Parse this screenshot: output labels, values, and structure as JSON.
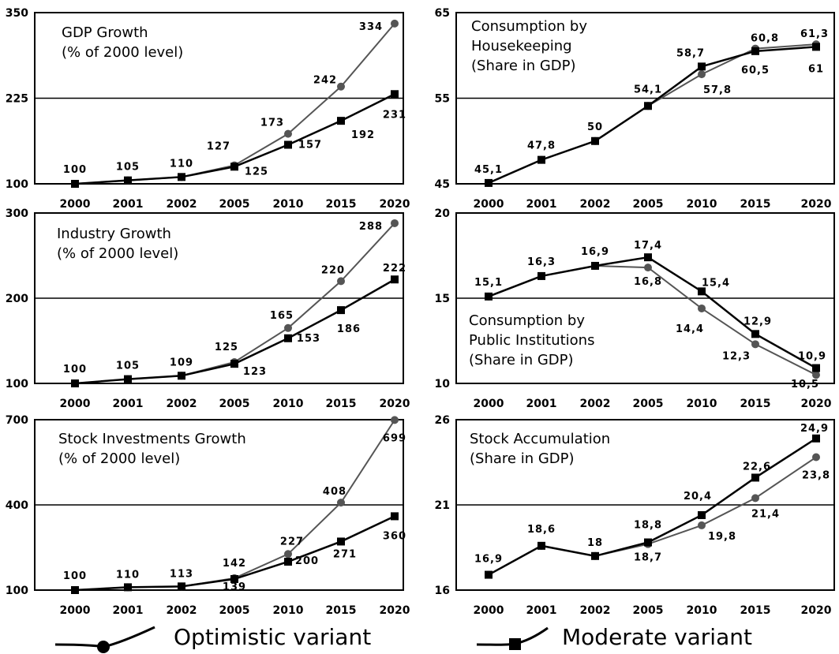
{
  "legend": {
    "optimistic": "Optimistic variant",
    "moderate": "Moderate variant"
  },
  "colors": {
    "optimistic": "#555555",
    "moderate": "#000000",
    "frame": "#000000"
  },
  "chart_data": [
    {
      "type": "line",
      "title": [
        "GDP Growth",
        "(% of 2000 level)"
      ],
      "categories": [
        "2000",
        "2001",
        "2002",
        "2005",
        "2010",
        "2015",
        "2020"
      ],
      "ylim": [
        100,
        350
      ],
      "yticks": [
        "100",
        "225",
        "350"
      ],
      "series": [
        {
          "name": "Optimistic variant",
          "values": [
            100,
            105,
            110,
            127,
            173,
            242,
            334
          ],
          "labels": [
            "",
            "",
            "",
            "127",
            "173",
            "242",
            "334"
          ]
        },
        {
          "name": "Moderate variant",
          "values": [
            100,
            105,
            110,
            125,
            157,
            192,
            231
          ],
          "labels": [
            "100",
            "105",
            "110",
            "125",
            "157",
            "192",
            "231"
          ]
        }
      ]
    },
    {
      "type": "line",
      "title": [
        "Consumption by",
        "Housekeeping",
        "(Share in GDP)"
      ],
      "categories": [
        "2000",
        "2001",
        "2002",
        "2005",
        "2010",
        "2015",
        "2020"
      ],
      "ylim": [
        45,
        65
      ],
      "yticks": [
        "45",
        "55",
        "65"
      ],
      "series": [
        {
          "name": "Optimistic variant",
          "values": [
            45.1,
            47.8,
            50,
            54.1,
            57.8,
            60.8,
            61.3
          ],
          "labels": [
            "45,1",
            "47,8",
            "50",
            "54,1",
            "57,8",
            "60,8",
            "61,3"
          ]
        },
        {
          "name": "Moderate variant",
          "values": [
            45.1,
            47.8,
            50,
            54.1,
            58.7,
            60.5,
            61
          ],
          "labels": [
            "",
            "",
            "",
            "",
            "58,7",
            "60,5",
            "61"
          ]
        }
      ]
    },
    {
      "type": "line",
      "title": [
        "Industry Growth",
        "(% of 2000 level)"
      ],
      "categories": [
        "2000",
        "2001",
        "2002",
        "2005",
        "2010",
        "2015",
        "2020"
      ],
      "ylim": [
        100,
        300
      ],
      "yticks": [
        "100",
        "200",
        "300"
      ],
      "series": [
        {
          "name": "Optimistic variant",
          "values": [
            100,
            105,
            109,
            125,
            165,
            220,
            288
          ],
          "labels": [
            "",
            "",
            "",
            "125",
            "165",
            "220",
            "288"
          ]
        },
        {
          "name": "Moderate variant",
          "values": [
            100,
            105,
            109,
            123,
            153,
            186,
            222
          ],
          "labels": [
            "100",
            "105",
            "109",
            "123",
            "153",
            "186",
            "222"
          ]
        }
      ]
    },
    {
      "type": "line",
      "title": [
        "Consumption by",
        "Public Institutions",
        "(Share in GDP)"
      ],
      "categories": [
        "2000",
        "2001",
        "2002",
        "2005",
        "2010",
        "2015",
        "2020"
      ],
      "ylim": [
        10,
        20
      ],
      "yticks": [
        "10",
        "15",
        "20"
      ],
      "series": [
        {
          "name": "Optimistic variant",
          "values": [
            15.1,
            16.3,
            16.9,
            16.8,
            14.4,
            12.3,
            10.5
          ],
          "labels": [
            "15,1",
            "16,3",
            "16,9",
            "16,8",
            "14,4",
            "12,3",
            "10,5"
          ]
        },
        {
          "name": "Moderate variant",
          "values": [
            15.1,
            16.3,
            16.9,
            17.4,
            15.4,
            12.9,
            10.9
          ],
          "labels": [
            "",
            "",
            "",
            "17,4",
            "15,4",
            "12,9",
            "10,9"
          ]
        }
      ]
    },
    {
      "type": "line",
      "title": [
        "Stock Investments Growth",
        "(% of 2000 level)"
      ],
      "categories": [
        "2000",
        "2001",
        "2002",
        "2005",
        "2010",
        "2015",
        "2020"
      ],
      "ylim": [
        100,
        700
      ],
      "yticks": [
        "100",
        "400",
        "700"
      ],
      "series": [
        {
          "name": "Optimistic variant",
          "values": [
            100,
            110,
            113,
            142,
            227,
            408,
            699
          ],
          "labels": [
            "",
            "",
            "",
            "142",
            "227",
            "408",
            "699"
          ]
        },
        {
          "name": "Moderate variant",
          "values": [
            100,
            110,
            113,
            139,
            200,
            271,
            360
          ],
          "labels": [
            "100",
            "110",
            "113",
            "139",
            "200",
            "271",
            "360"
          ]
        }
      ]
    },
    {
      "type": "line",
      "title": [
        "Stock Accumulation",
        "(Share in GDP)"
      ],
      "categories": [
        "2000",
        "2001",
        "2002",
        "2005",
        "2010",
        "2015",
        "2020"
      ],
      "ylim": [
        16,
        26
      ],
      "yticks": [
        "16",
        "21",
        "26"
      ],
      "series": [
        {
          "name": "Optimistic variant",
          "values": [
            16.9,
            18.6,
            18,
            18.7,
            19.8,
            21.4,
            23.8
          ],
          "labels": [
            "16,9",
            "18,6",
            "18",
            "18,7",
            "19,8",
            "21,4",
            "23,8"
          ]
        },
        {
          "name": "Moderate variant",
          "values": [
            16.9,
            18.6,
            18,
            18.8,
            20.4,
            22.6,
            24.9
          ],
          "labels": [
            "",
            "",
            "",
            "18,8",
            "20,4",
            "22,6",
            "24,9"
          ]
        }
      ]
    }
  ]
}
